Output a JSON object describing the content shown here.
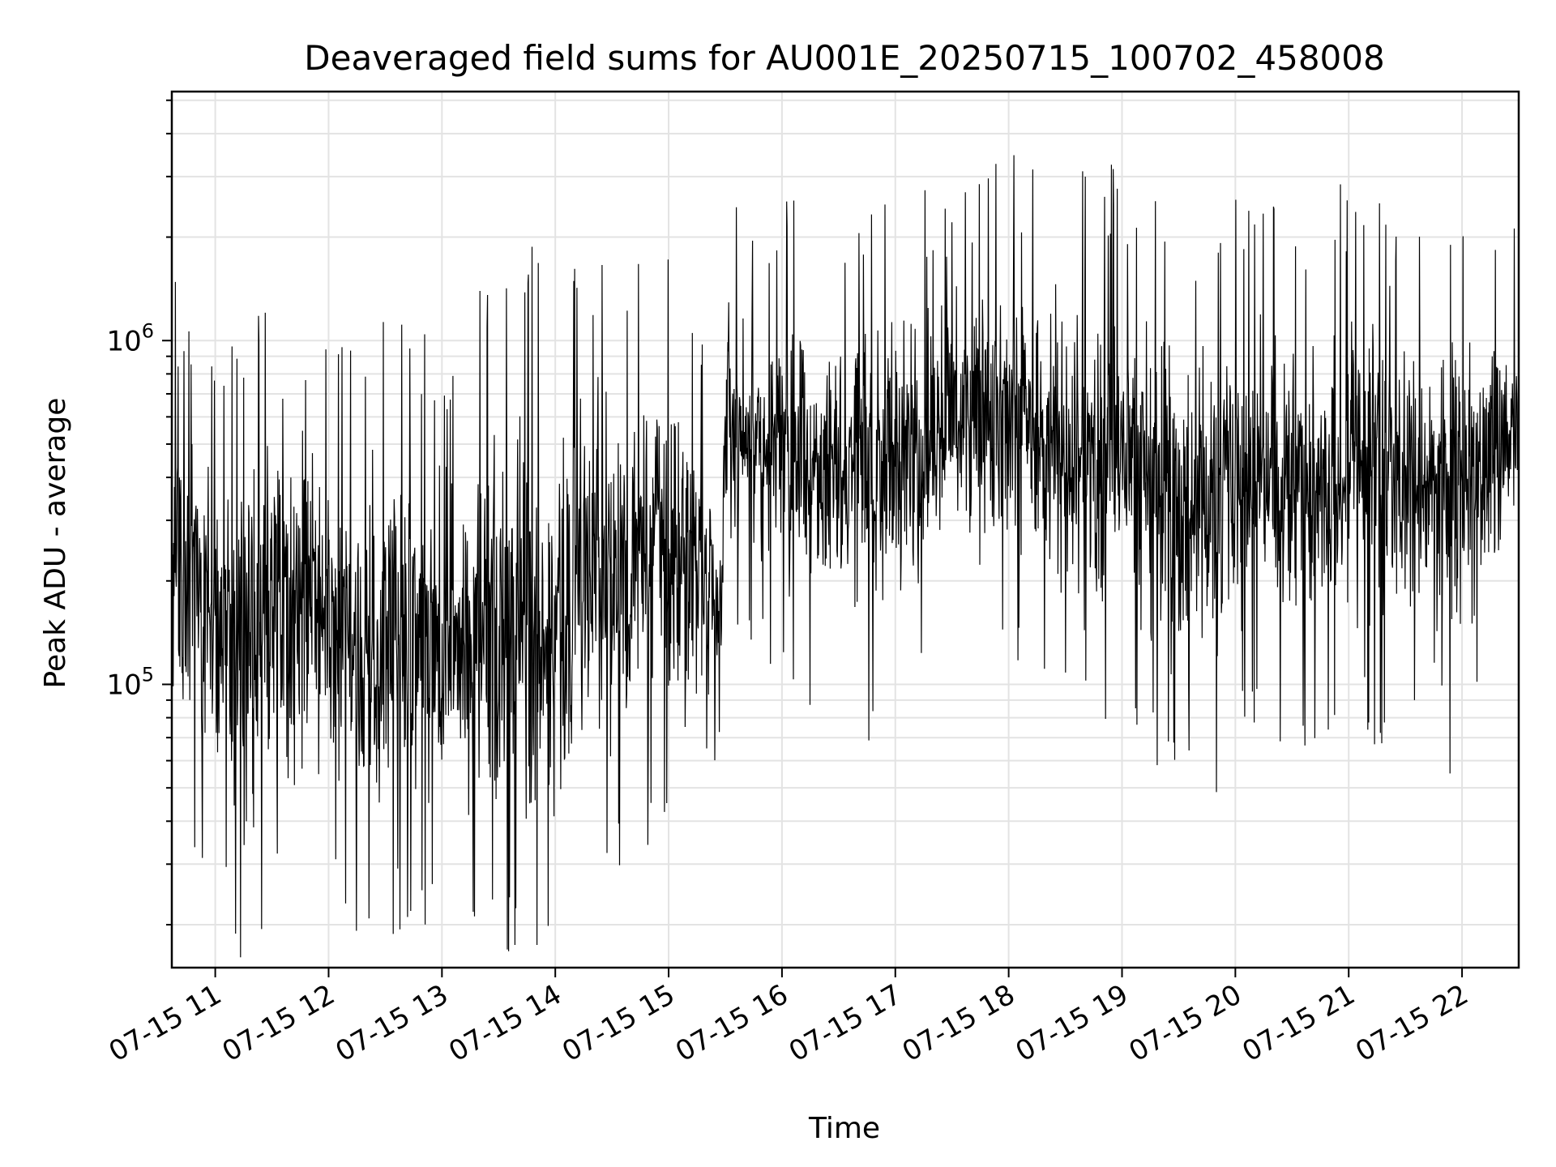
{
  "chart_data": {
    "type": "line",
    "title": "Deaveraged field sums for AU001E_20250715_100702_458008",
    "xlabel": "Time",
    "ylabel": "Peak ADU - average",
    "yscale": "log",
    "ylim": [
      15000,
      5300000
    ],
    "xlim": [
      "2025-07-15 10:37",
      "2025-07-15 22:30"
    ],
    "grid": true,
    "line_color": "#000000",
    "x_ticks": [
      {
        "value": "2025-07-15 11:00",
        "label": "07-15 11"
      },
      {
        "value": "2025-07-15 12:00",
        "label": "07-15 12"
      },
      {
        "value": "2025-07-15 13:00",
        "label": "07-15 13"
      },
      {
        "value": "2025-07-15 14:00",
        "label": "07-15 14"
      },
      {
        "value": "2025-07-15 15:00",
        "label": "07-15 15"
      },
      {
        "value": "2025-07-15 16:00",
        "label": "07-15 16"
      },
      {
        "value": "2025-07-15 17:00",
        "label": "07-15 17"
      },
      {
        "value": "2025-07-15 18:00",
        "label": "07-15 18"
      },
      {
        "value": "2025-07-15 19:00",
        "label": "07-15 19"
      },
      {
        "value": "2025-07-15 20:00",
        "label": "07-15 20"
      },
      {
        "value": "2025-07-15 21:00",
        "label": "07-15 21"
      },
      {
        "value": "2025-07-15 22:00",
        "label": "07-15 22"
      }
    ],
    "y_ticks": [
      {
        "value": 100000,
        "base": "10",
        "exp": "5"
      },
      {
        "value": 1000000,
        "base": "10",
        "exp": "6"
      }
    ],
    "series": [
      {
        "x": [
          "2025-07-15 10:37",
          "2025-07-15 11:00",
          "2025-07-15 11:15",
          "2025-07-15 11:30",
          "2025-07-15 12:00",
          "2025-07-15 12:15",
          "2025-07-15 12:30",
          "2025-07-15 13:00",
          "2025-07-15 13:30",
          "2025-07-15 14:00",
          "2025-07-15 14:30",
          "2025-07-15 15:00",
          "2025-07-15 15:28",
          "2025-07-15 15:30",
          "2025-07-15 16:00",
          "2025-07-15 16:30",
          "2025-07-15 17:00",
          "2025-07-15 17:30",
          "2025-07-15 18:00",
          "2025-07-15 18:30",
          "2025-07-15 19:00",
          "2025-07-15 19:30",
          "2025-07-15 19:50",
          "2025-07-15 20:00",
          "2025-07-15 20:30",
          "2025-07-15 21:00",
          "2025-07-15 21:30",
          "2025-07-15 22:00",
          "2025-07-15 22:30"
        ],
        "low": [
          60000,
          45000,
          20000,
          35000,
          35000,
          28000,
          30000,
          28000,
          25000,
          28000,
          40000,
          60000,
          75000,
          200000,
          150000,
          120000,
          100000,
          200000,
          150000,
          130000,
          100000,
          80000,
          65000,
          120000,
          100000,
          110000,
          100000,
          80000,
          300000
        ],
        "high": [
          900000,
          500000,
          700000,
          900000,
          650000,
          550000,
          800000,
          600000,
          900000,
          1200000,
          1100000,
          1200000,
          400000,
          1600000,
          1500000,
          1400000,
          1600000,
          1700000,
          2000000,
          1800000,
          1900000,
          1500000,
          1400000,
          1500000,
          1500000,
          1700000,
          1600000,
          1600000,
          1200000
        ]
      }
    ]
  }
}
